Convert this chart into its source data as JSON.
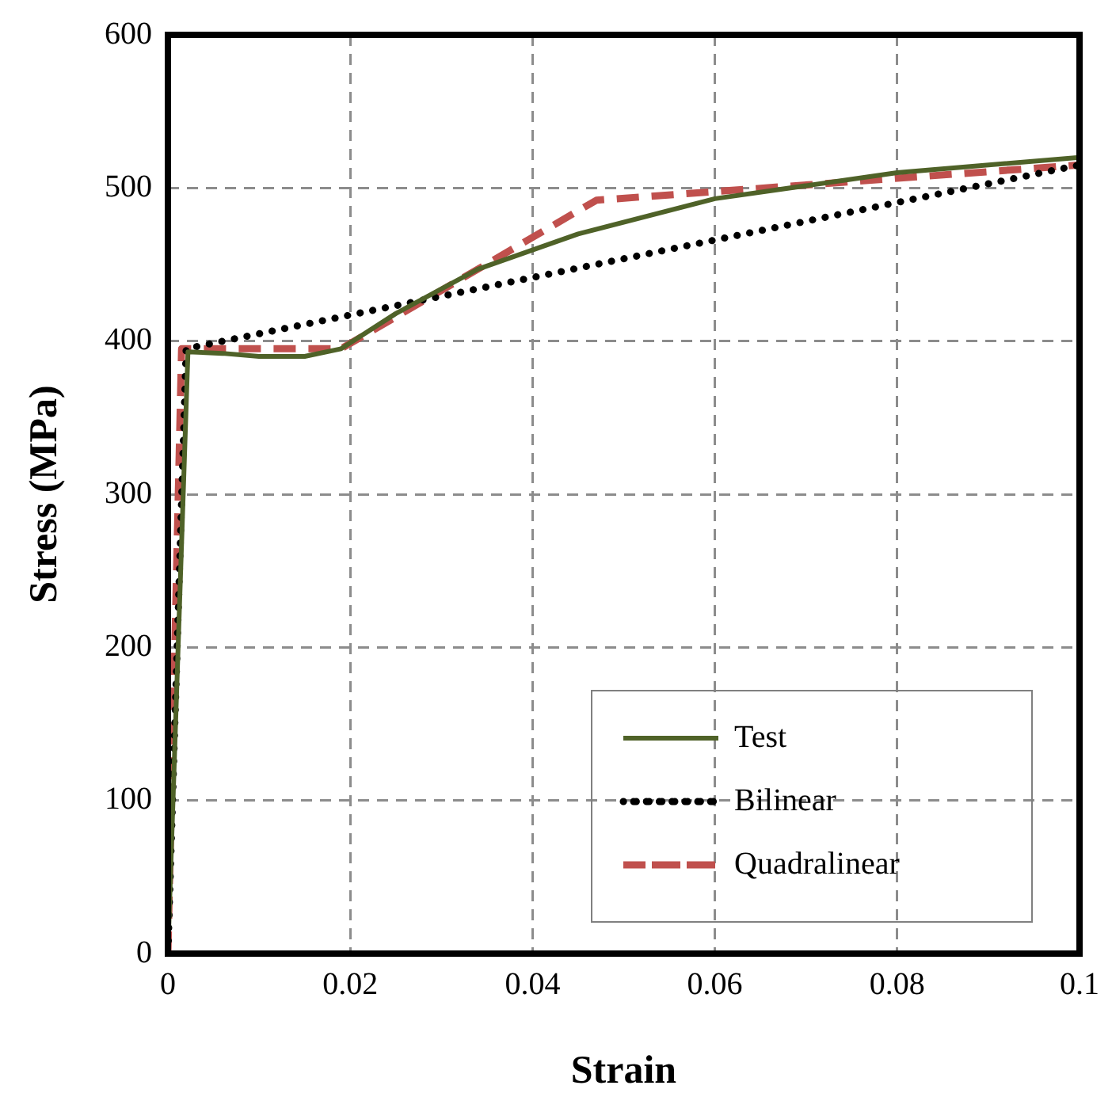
{
  "chart_data": {
    "type": "line",
    "xlabel": "Strain",
    "ylabel": "Stress (MPa)",
    "xlim": [
      0,
      0.1
    ],
    "xticks": [
      0,
      0.02,
      0.04,
      0.06,
      0.08,
      0.1
    ],
    "ylim": [
      0,
      600
    ],
    "yticks": [
      0,
      100,
      200,
      300,
      400,
      500,
      600
    ],
    "grid": true,
    "legend": "bottom right",
    "marker": "none",
    "series": [
      {
        "name": "Test",
        "color": "#4f6228",
        "line_style": "solid",
        "x": [
          0,
          0.0022,
          0.006,
          0.01,
          0.015,
          0.019,
          0.025,
          0.034,
          0.045,
          0.06,
          0.08,
          0.1
        ],
        "values": [
          0,
          393,
          392,
          390,
          390,
          395,
          418,
          447,
          470,
          493,
          510,
          520
        ]
      },
      {
        "name": "Bilinear",
        "color": "#000000",
        "line_style": "dotted",
        "x": [
          0,
          0.002,
          0.1
        ],
        "values": [
          0,
          395,
          515
        ]
      },
      {
        "name": "Quadralinear",
        "color": "#c0504d",
        "line_style": "dashed",
        "x": [
          0,
          0.0015,
          0.019,
          0.047,
          0.1
        ],
        "values": [
          0,
          395,
          395,
          492,
          515
        ]
      }
    ]
  }
}
